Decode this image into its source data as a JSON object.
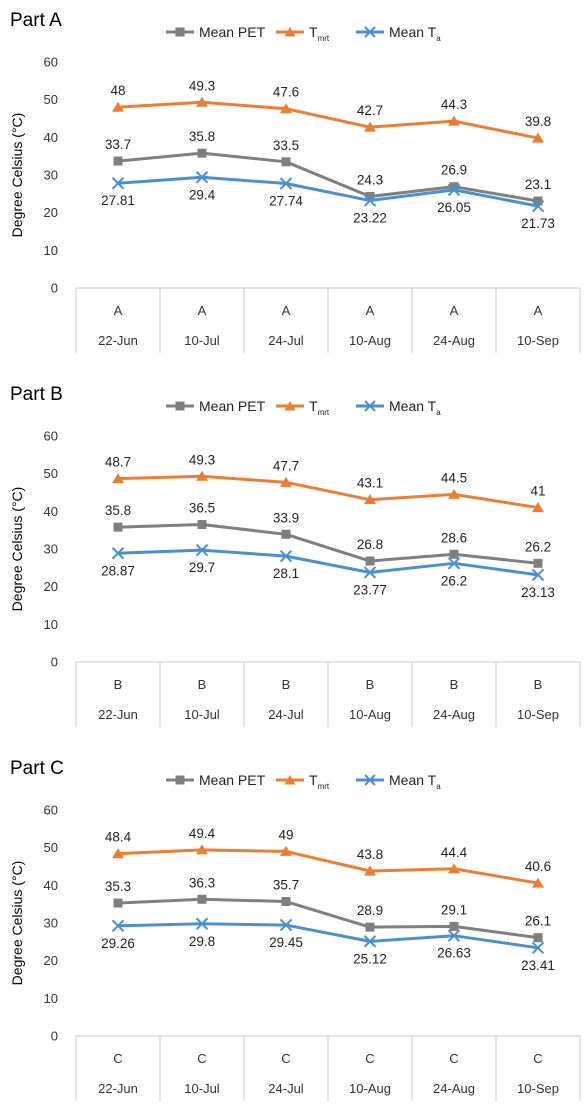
{
  "legend": {
    "pet_label": "Mean PET",
    "tmrt_main": "T",
    "tmrt_sub": "mrt",
    "ta_main": "Mean T",
    "ta_sub": "a"
  },
  "colors": {
    "pet": "#7f7f7f",
    "tmrt": "#ed7d31",
    "ta": "#4a90d0"
  },
  "chart_data": [
    {
      "type": "line",
      "title": "Part A",
      "ylabel": "Degree Celsius (°C)",
      "ylim": [
        0,
        60
      ],
      "yticks": [
        0,
        10,
        20,
        30,
        40,
        50,
        60
      ],
      "group_labels": [
        "A",
        "A",
        "A",
        "A",
        "A",
        "A"
      ],
      "categories": [
        "22-Jun",
        "10-Jul",
        "24-Jul",
        "10-Aug",
        "24-Aug",
        "10-Sep"
      ],
      "series": [
        {
          "name": "Mean PET",
          "values": [
            33.7,
            35.8,
            33.5,
            24.3,
            26.9,
            23.1
          ],
          "labels": [
            "33.7",
            "35.8",
            "33.5",
            "24.3",
            "26.9",
            "23.1"
          ]
        },
        {
          "name": "Tmrt",
          "values": [
            48,
            49.3,
            47.6,
            42.7,
            44.3,
            39.8
          ],
          "labels": [
            "48",
            "49.3",
            "47.6",
            "42.7",
            "44.3",
            "39.8"
          ]
        },
        {
          "name": "Mean Ta",
          "values": [
            27.81,
            29.4,
            27.74,
            23.22,
            26.05,
            21.73
          ],
          "labels": [
            "27.81",
            "29.4",
            "27.74",
            "23.22",
            "26.05",
            "21.73"
          ]
        }
      ]
    },
    {
      "type": "line",
      "title": "Part B",
      "ylabel": "Degree Celsius (°C)",
      "ylim": [
        0,
        60
      ],
      "yticks": [
        0,
        10,
        20,
        30,
        40,
        50,
        60
      ],
      "group_labels": [
        "B",
        "B",
        "B",
        "B",
        "B",
        "B"
      ],
      "categories": [
        "22-Jun",
        "10-Jul",
        "24-Jul",
        "10-Aug",
        "24-Aug",
        "10-Sep"
      ],
      "series": [
        {
          "name": "Mean PET",
          "values": [
            35.8,
            36.5,
            33.9,
            26.8,
            28.6,
            26.2
          ],
          "labels": [
            "35.8",
            "36.5",
            "33.9",
            "26.8",
            "28.6",
            "26.2"
          ]
        },
        {
          "name": "Tmrt",
          "values": [
            48.7,
            49.3,
            47.7,
            43.1,
            44.5,
            41
          ],
          "labels": [
            "48.7",
            "49.3",
            "47.7",
            "43.1",
            "44.5",
            "41"
          ]
        },
        {
          "name": "Mean Ta",
          "values": [
            28.87,
            29.7,
            28.1,
            23.77,
            26.2,
            23.13
          ],
          "labels": [
            "28.87",
            "29.7",
            "28.1",
            "23.77",
            "26.2",
            "23.13"
          ]
        }
      ]
    },
    {
      "type": "line",
      "title": "Part C",
      "ylabel": "Degree Celsius (°C)",
      "ylim": [
        0,
        60
      ],
      "yticks": [
        0,
        10,
        20,
        30,
        40,
        50,
        60
      ],
      "group_labels": [
        "C",
        "C",
        "C",
        "C",
        "C",
        "C"
      ],
      "categories": [
        "22-Jun",
        "10-Jul",
        "24-Jul",
        "10-Aug",
        "24-Aug",
        "10-Sep"
      ],
      "series": [
        {
          "name": "Mean PET",
          "values": [
            35.3,
            36.3,
            35.7,
            28.9,
            29.1,
            26.1
          ],
          "labels": [
            "35.3",
            "36.3",
            "35.7",
            "28.9",
            "29.1",
            "26.1"
          ]
        },
        {
          "name": "Tmrt",
          "values": [
            48.4,
            49.4,
            49,
            43.8,
            44.4,
            40.6
          ],
          "labels": [
            "48.4",
            "49.4",
            "49",
            "43.8",
            "44.4",
            "40.6"
          ]
        },
        {
          "name": "Mean Ta",
          "values": [
            29.26,
            29.8,
            29.45,
            25.12,
            26.63,
            23.41
          ],
          "labels": [
            "29.26",
            "29.8",
            "29.45",
            "25.12",
            "26.63",
            "23.41"
          ]
        }
      ]
    }
  ]
}
